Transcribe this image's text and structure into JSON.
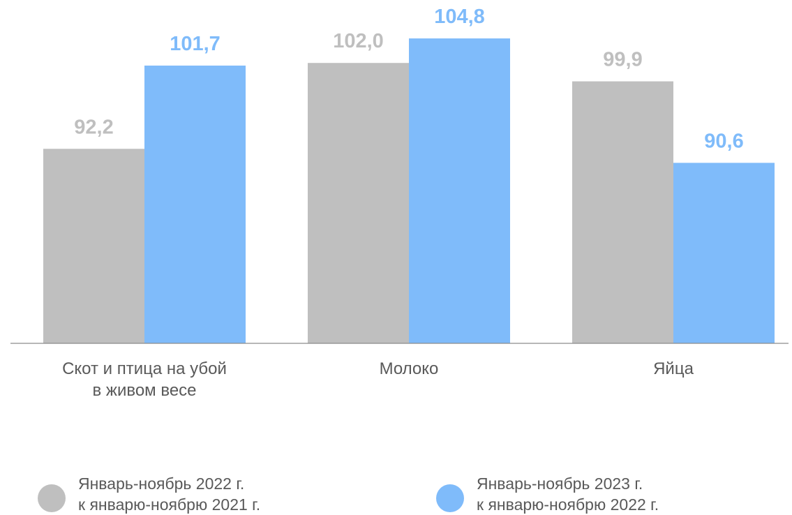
{
  "chart_data": {
    "type": "bar",
    "categories": [
      "Скот и птица на убой\nв живом весе",
      "Молоко",
      "Яйца"
    ],
    "series": [
      {
        "name": "Январь-ноябрь 2022 г.\nк январю-ноябрю 2021 г.",
        "values": [
          92.2,
          102.0,
          99.9
        ],
        "labels": [
          "92,2",
          "102,0",
          "99,9"
        ],
        "color": "#bfbfbf",
        "label_color": "#bfbfbf"
      },
      {
        "name": "Январь-ноябрь 2023 г.\nк январю-ноябрю  2022 г.",
        "values": [
          101.7,
          104.8,
          90.6
        ],
        "labels": [
          "101,7",
          "104,8",
          "90,6"
        ],
        "color": "#7fbbfa",
        "label_color": "#7fbbfa"
      }
    ],
    "ylim": [
      70,
      106
    ],
    "grid": false,
    "legend": "bottom",
    "title": "",
    "xlabel": "",
    "ylabel": ""
  }
}
